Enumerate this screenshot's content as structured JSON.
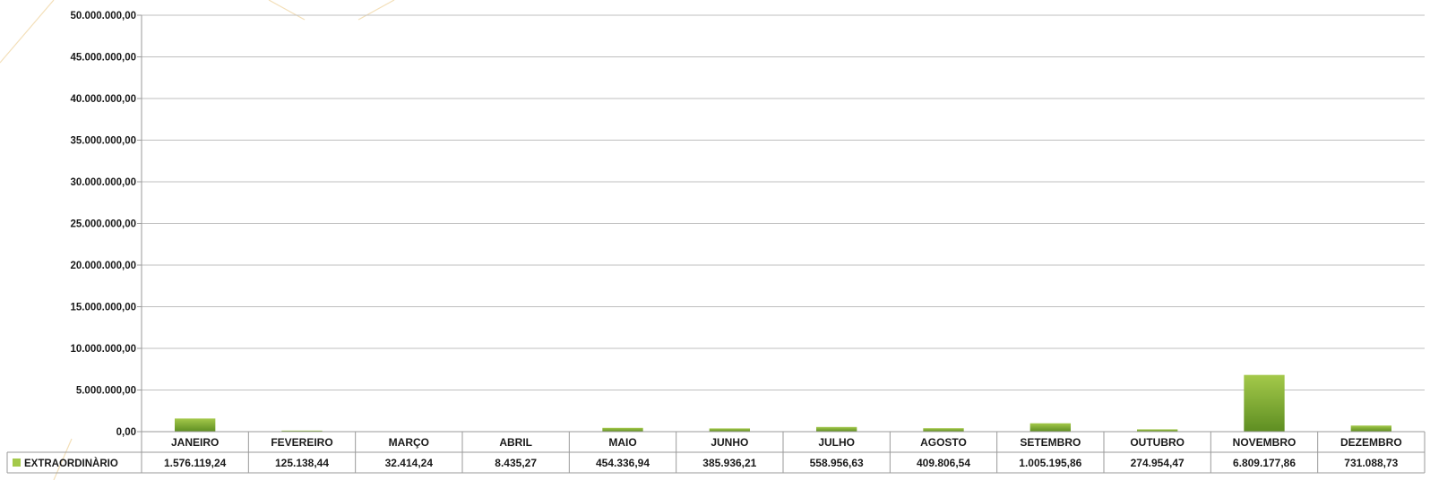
{
  "colors": {
    "bar_top": "#a4c94a",
    "bar_bottom": "#5e8e22",
    "gridline": "#bfbfbf",
    "table_line": "#9a9a9a",
    "decor_line": "#f3dfb8"
  },
  "chart_data": {
    "type": "bar",
    "categories": [
      "JANEIRO",
      "FEVEREIRO",
      "MARÇO",
      "ABRIL",
      "MAIO",
      "JUNHO",
      "JULHO",
      "AGOSTO",
      "SETEMBRO",
      "OUTUBRO",
      "NOVEMBRO",
      "DEZEMBRO"
    ],
    "series": [
      {
        "name": "EXTRAORDINÀRIO",
        "values": [
          1576119.24,
          125138.44,
          32414.24,
          8435.27,
          454336.94,
          385936.21,
          558956.63,
          409806.54,
          1005195.86,
          274954.47,
          6809177.86,
          731088.73
        ],
        "labels": [
          "1.576.119,24",
          "125.138,44",
          "32.414,24",
          "8.435,27",
          "454.336,94",
          "385.936,21",
          "558.956,63",
          "409.806,54",
          "1.005.195,86",
          "274.954,47",
          "6.809.177,86",
          "731.088,73"
        ]
      }
    ],
    "ylim": [
      0,
      50000000
    ],
    "y_ticks": [
      0,
      5000000,
      10000000,
      15000000,
      20000000,
      25000000,
      30000000,
      35000000,
      40000000,
      45000000,
      50000000
    ],
    "y_tick_labels": [
      "0,00",
      "5.000.000,00",
      "10.000.000,00",
      "15.000.000,00",
      "20.000.000,00",
      "25.000.000,00",
      "30.000.000,00",
      "35.000.000,00",
      "40.000.000,00",
      "45.000.000,00",
      "50.000.000,00"
    ],
    "grid": true,
    "data_table": true
  }
}
